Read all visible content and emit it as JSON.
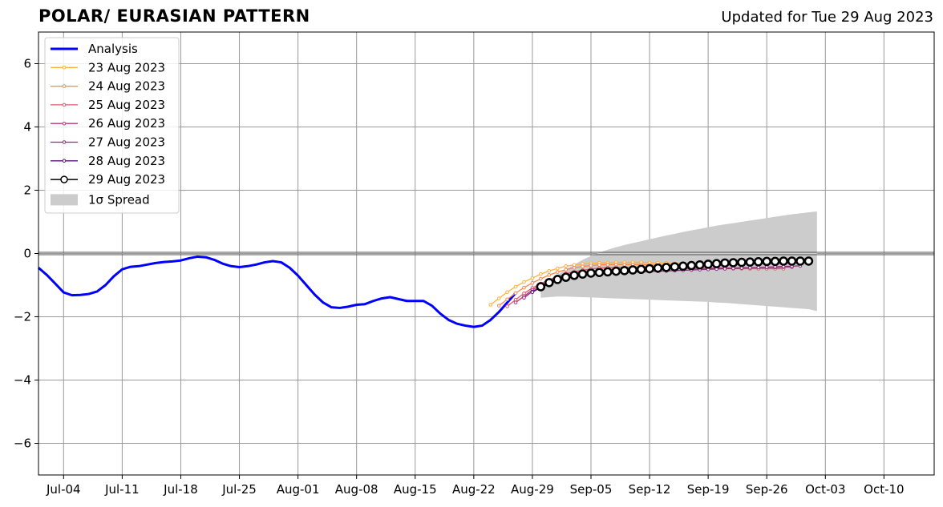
{
  "header": {
    "title": "POLAR/ EURASIAN  PATTERN",
    "updated": "Updated for Tue 29 Aug 2023"
  },
  "chart_data": {
    "type": "line",
    "title": "POLAR/ EURASIAN  PATTERN",
    "xlabel": "",
    "ylabel": "",
    "xlim": [
      "2023-07-01",
      "2023-10-16"
    ],
    "ylim": [
      -7,
      7
    ],
    "grid": true,
    "legend_position": "top-left",
    "x_ticks": [
      "Jul-04",
      "Jul-11",
      "Jul-18",
      "Jul-25",
      "Aug-01",
      "Aug-08",
      "Aug-15",
      "Aug-22",
      "Aug-29",
      "Sep-05",
      "Sep-12",
      "Sep-19",
      "Sep-26",
      "Oct-03",
      "Oct-10"
    ],
    "y_ticks": [
      "−6",
      "−4",
      "−2",
      "0",
      "2",
      "4",
      "6"
    ],
    "y_tick_values": [
      -6,
      -4,
      -2,
      0,
      2,
      4,
      6
    ],
    "analysis": {
      "name": "Analysis",
      "color": "#0000ff",
      "start": "2023-07-01",
      "values": [
        -0.45,
        -0.68,
        -0.95,
        -1.23,
        -1.32,
        -1.31,
        -1.28,
        -1.2,
        -1.0,
        -0.72,
        -0.5,
        -0.42,
        -0.4,
        -0.35,
        -0.3,
        -0.27,
        -0.25,
        -0.22,
        -0.15,
        -0.1,
        -0.12,
        -0.2,
        -0.32,
        -0.4,
        -0.43,
        -0.4,
        -0.35,
        -0.28,
        -0.24,
        -0.28,
        -0.45,
        -0.7,
        -1.0,
        -1.3,
        -1.55,
        -1.7,
        -1.72,
        -1.68,
        -1.62,
        -1.6,
        -1.5,
        -1.42,
        -1.38,
        -1.44,
        -1.5,
        -1.5,
        -1.5,
        -1.65,
        -1.9,
        -2.1,
        -2.22,
        -2.28,
        -2.32,
        -2.28,
        -2.1,
        -1.85,
        -1.55,
        -1.25
      ]
    },
    "forecasts": [
      {
        "name": "23 Aug 2023",
        "color": "#fbb13c",
        "start": "2023-08-24",
        "values": [
          -1.62,
          -1.42,
          -1.22,
          -1.05,
          -0.9,
          -0.78,
          -0.65,
          -0.55,
          -0.47,
          -0.4,
          -0.36,
          -0.33,
          -0.31,
          -0.3,
          -0.29,
          -0.28,
          -0.28,
          -0.28,
          -0.28,
          -0.29,
          -0.3,
          -0.3,
          -0.31,
          -0.32
        ]
      },
      {
        "name": "24 Aug 2023",
        "color": "#f5874d",
        "start": "2023-08-25",
        "values": [
          -1.65,
          -1.45,
          -1.25,
          -1.08,
          -0.93,
          -0.8,
          -0.68,
          -0.59,
          -0.51,
          -0.45,
          -0.41,
          -0.38,
          -0.36,
          -0.35,
          -0.35,
          -0.35,
          -0.35,
          -0.35,
          -0.36,
          -0.37,
          -0.37,
          -0.38,
          -0.38,
          -0.39
        ]
      },
      {
        "name": "25 Aug 2023",
        "color": "#df5a68",
        "start": "2023-08-26",
        "values": [
          -1.67,
          -1.46,
          -1.26,
          -1.09,
          -0.95,
          -0.83,
          -0.73,
          -0.64,
          -0.58,
          -0.53,
          -0.49,
          -0.46,
          -0.45,
          -0.44,
          -0.44,
          -0.44,
          -0.44,
          -0.45,
          -0.45,
          -0.46,
          -0.46,
          -0.47,
          -0.47,
          -0.47,
          -0.47,
          -0.47,
          -0.48,
          -0.48,
          -0.48,
          -0.48,
          -0.48,
          -0.48,
          -0.48,
          -0.48
        ]
      },
      {
        "name": "26 Aug 2023",
        "color": "#b73779",
        "start": "2023-08-27",
        "values": [
          -1.55,
          -1.35,
          -1.15,
          -1.0,
          -0.88,
          -0.78,
          -0.7,
          -0.64,
          -0.59,
          -0.56,
          -0.54,
          -0.53,
          -0.52,
          -0.51,
          -0.5,
          -0.5,
          -0.49,
          -0.49,
          -0.48,
          -0.48,
          -0.48,
          -0.47,
          -0.47,
          -0.47,
          -0.46,
          -0.46,
          -0.46,
          -0.45,
          -0.45,
          -0.44,
          -0.44,
          -0.44,
          -0.43,
          -0.43
        ]
      },
      {
        "name": "27 Aug 2023",
        "color": "#8c2981",
        "start": "2023-08-28",
        "values": [
          -1.4,
          -1.2,
          -1.05,
          -0.93,
          -0.84,
          -0.77,
          -0.72,
          -0.68,
          -0.65,
          -0.63,
          -0.62,
          -0.61,
          -0.6,
          -0.59,
          -0.58,
          -0.57,
          -0.56,
          -0.55,
          -0.54,
          -0.53,
          -0.52,
          -0.51,
          -0.5,
          -0.49,
          -0.48,
          -0.47,
          -0.46,
          -0.45,
          -0.44,
          -0.43,
          -0.42,
          -0.41,
          -0.4,
          -0.39
        ]
      },
      {
        "name": "28 Aug 2023",
        "color": "#51127c",
        "start": "2023-08-29",
        "values": [
          -1.22,
          -1.08,
          -0.96,
          -0.86,
          -0.78,
          -0.72,
          -0.67,
          -0.63,
          -0.6,
          -0.57,
          -0.55,
          -0.53,
          -0.51,
          -0.49,
          -0.47,
          -0.45,
          -0.44,
          -0.42,
          -0.41,
          -0.4,
          -0.39,
          -0.38,
          -0.37,
          -0.36,
          -0.35,
          -0.34,
          -0.33,
          -0.32,
          -0.31,
          -0.3,
          -0.3,
          -0.29,
          -0.29,
          -0.28
        ]
      },
      {
        "name": "29 Aug 2023",
        "color": "#000000",
        "start": "2023-08-30",
        "values": [
          -1.05,
          -0.92,
          -0.82,
          -0.75,
          -0.69,
          -0.65,
          -0.62,
          -0.6,
          -0.58,
          -0.56,
          -0.54,
          -0.52,
          -0.5,
          -0.48,
          -0.46,
          -0.44,
          -0.42,
          -0.4,
          -0.38,
          -0.36,
          -0.34,
          -0.32,
          -0.3,
          -0.29,
          -0.28,
          -0.27,
          -0.26,
          -0.25,
          -0.25,
          -0.24,
          -0.24,
          -0.24,
          -0.24
        ]
      }
    ],
    "spread": {
      "name": "1σ Spread",
      "color": "#cccccc",
      "start": "2023-08-30",
      "upper": [
        -1.15,
        -0.9,
        -0.68,
        -0.5,
        -0.35,
        -0.2,
        -0.08,
        0.03,
        0.12,
        0.2,
        0.27,
        0.33,
        0.39,
        0.45,
        0.51,
        0.57,
        0.62,
        0.68,
        0.73,
        0.78,
        0.83,
        0.88,
        0.92,
        0.96,
        1.0,
        1.04,
        1.08,
        1.12,
        1.16,
        1.2,
        1.24,
        1.27,
        1.3,
        1.33
      ],
      "lower": [
        -1.4,
        -1.38,
        -1.36,
        -1.36,
        -1.37,
        -1.38,
        -1.39,
        -1.4,
        -1.41,
        -1.42,
        -1.43,
        -1.44,
        -1.45,
        -1.46,
        -1.47,
        -1.48,
        -1.49,
        -1.5,
        -1.51,
        -1.52,
        -1.53,
        -1.55,
        -1.56,
        -1.58,
        -1.6,
        -1.62,
        -1.64,
        -1.66,
        -1.68,
        -1.7,
        -1.72,
        -1.74,
        -1.76,
        -1.82
      ]
    }
  }
}
